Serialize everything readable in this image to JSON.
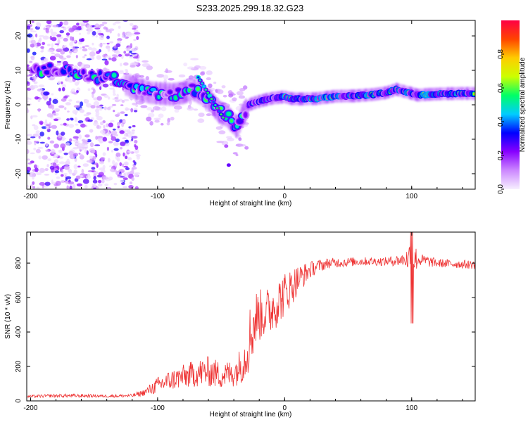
{
  "title": "S233.2025.299.18.32.G23",
  "chart_data": [
    {
      "type": "heatmap",
      "name": "spectrogram",
      "xlabel": "Height of straight line (km)",
      "ylabel": "Frequency (Hz)",
      "xlim": [
        -203,
        150
      ],
      "ylim": [
        -24.5,
        24.5
      ],
      "x_ticks": [
        -200,
        -100,
        0,
        100
      ],
      "y_ticks": [
        -20,
        -10,
        0,
        10,
        20
      ],
      "ridge_points": [
        [
          -195,
          10
        ],
        [
          -185,
          10.3
        ],
        [
          -175,
          10
        ],
        [
          -165,
          9.5
        ],
        [
          -155,
          8.5
        ],
        [
          -145,
          8
        ],
        [
          -135,
          7.5
        ],
        [
          -125,
          6
        ],
        [
          -115,
          4.5
        ],
        [
          -105,
          3.5
        ],
        [
          -95,
          3.2
        ],
        [
          -88,
          3
        ],
        [
          -80,
          3.5
        ],
        [
          -72,
          4.5
        ],
        [
          -65,
          3
        ],
        [
          -58,
          1
        ],
        [
          -52,
          -2
        ],
        [
          -46,
          -3
        ],
        [
          -41,
          -5
        ],
        [
          -37,
          -6.5
        ],
        [
          -33,
          -3
        ],
        [
          -28,
          0
        ],
        [
          -22,
          0.8
        ],
        [
          -15,
          1.5
        ],
        [
          -8,
          2
        ],
        [
          0,
          2.3
        ],
        [
          5,
          1.8
        ],
        [
          12,
          1.7
        ],
        [
          25,
          1.8
        ],
        [
          40,
          2.5
        ],
        [
          55,
          2.6
        ],
        [
          70,
          3
        ],
        [
          80,
          3.5
        ],
        [
          88,
          4.5
        ],
        [
          95,
          3.8
        ],
        [
          105,
          2.8
        ],
        [
          112,
          3
        ],
        [
          125,
          3.2
        ],
        [
          138,
          3.3
        ],
        [
          150,
          3.3
        ]
      ],
      "colorbar": {
        "label": "Normalized spectral amplitude",
        "range": [
          0,
          1
        ],
        "ticks": [
          0.0,
          0.2,
          0.4,
          0.6,
          0.8
        ],
        "tick_labels": [
          "0.0",
          "0.2",
          "0.4",
          "0.6",
          "0.8"
        ],
        "colors": [
          "#f7f0ff",
          "#cc88ff",
          "#8800ff",
          "#0000ff",
          "#00ccff",
          "#00ff66",
          "#ccff00",
          "#ffcc00",
          "#ff4400",
          "#ff0044"
        ]
      }
    },
    {
      "type": "line",
      "name": "snr",
      "xlabel": "Height of straight line (km)",
      "ylabel": "SNR (10 * v/v)",
      "xlim": [
        -203,
        150
      ],
      "ylim": [
        0,
        980
      ],
      "x_ticks": [
        -200,
        -100,
        0,
        100
      ],
      "y_ticks": [
        0,
        200,
        400,
        600,
        800
      ],
      "series": [
        {
          "name": "SNR",
          "color": "#ee3333",
          "envelope": [
            [
              -203,
              25,
              8
            ],
            [
              -180,
              30,
              10
            ],
            [
              -160,
              30,
              10
            ],
            [
              -140,
              28,
              8
            ],
            [
              -120,
              30,
              10
            ],
            [
              -110,
              50,
              20
            ],
            [
              -100,
              90,
              50
            ],
            [
              -90,
              120,
              60
            ],
            [
              -80,
              140,
              70
            ],
            [
              -70,
              160,
              80
            ],
            [
              -60,
              170,
              90
            ],
            [
              -50,
              150,
              80
            ],
            [
              -40,
              160,
              80
            ],
            [
              -32,
              230,
              120
            ],
            [
              -27,
              380,
              200
            ],
            [
              -22,
              490,
              160
            ],
            [
              -15,
              510,
              140
            ],
            [
              -10,
              540,
              150
            ],
            [
              -5,
              580,
              140
            ],
            [
              0,
              620,
              130
            ],
            [
              5,
              660,
              110
            ],
            [
              10,
              700,
              90
            ],
            [
              15,
              730,
              70
            ],
            [
              20,
              760,
              50
            ],
            [
              25,
              780,
              40
            ],
            [
              35,
              800,
              30
            ],
            [
              60,
              810,
              25
            ],
            [
              80,
              810,
              25
            ],
            [
              95,
              820,
              40
            ],
            [
              100,
              830,
              150
            ],
            [
              105,
              820,
              40
            ],
            [
              120,
              800,
              25
            ],
            [
              150,
              790,
              25
            ]
          ]
        }
      ]
    }
  ]
}
